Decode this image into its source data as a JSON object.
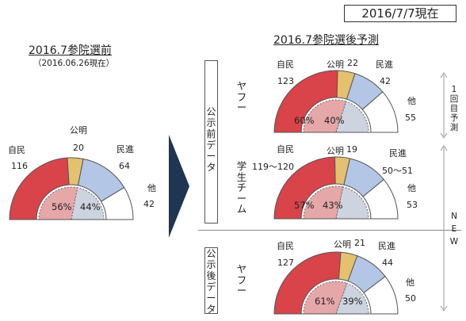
{
  "date_box": "2016/7/7現在",
  "left": {
    "title": "2016.7参院選前",
    "subtitle": "（2016.06.26現在）",
    "seats": {
      "jimin": "116",
      "komei": "20",
      "minshin": "64",
      "other": "42"
    },
    "labels": {
      "jimin": "自民",
      "komei": "公明",
      "minshin": "民進",
      "other": "他"
    },
    "inner": {
      "left_pct": "56%",
      "right_pct": "44%"
    }
  },
  "right_title": "2016.7参院選後予測",
  "group_pre_label": [
    "公",
    "示",
    "前",
    "デ",
    "ー",
    "タ"
  ],
  "group_post_label": [
    "公",
    "示",
    "後",
    "デ",
    "ー",
    "タ"
  ],
  "rows": [
    {
      "source": [
        "ヤ",
        "フ",
        "ー"
      ],
      "labels": {
        "jimin": "自民",
        "komei": "公明",
        "minshin": "民進",
        "other": "他"
      },
      "seats": {
        "jimin": "123",
        "komei": "22",
        "minshin": "42",
        "other": "55"
      },
      "inner": {
        "left_pct": "60%",
        "right_pct": "40%"
      }
    },
    {
      "source": [
        "学",
        "生",
        "チ",
        "ー",
        "ム"
      ],
      "labels": {
        "jimin": "自民",
        "komei": "公明",
        "minshin": "民進",
        "other": "他"
      },
      "seats": {
        "jimin": "119～120",
        "komei": "19",
        "minshin": "50～51",
        "other": "53"
      },
      "inner": {
        "left_pct": "57%",
        "right_pct": "43%"
      }
    },
    {
      "source": [
        "ヤ",
        "フ",
        "ー"
      ],
      "labels": {
        "jimin": "自民",
        "komei": "公明",
        "minshin": "民進",
        "other": "他"
      },
      "seats": {
        "jimin": "127",
        "komei": "21",
        "minshin": "44",
        "other": "50"
      },
      "inner": {
        "left_pct": "61%",
        "right_pct": "39%"
      }
    }
  ],
  "side_first": [
    "1",
    "回",
    "目",
    "予",
    "測"
  ],
  "side_new": [
    "N",
    "E",
    "W"
  ],
  "chart_data": [
    {
      "type": "pie",
      "title": "2016.7参院選前",
      "categories": [
        "自民",
        "公明",
        "民進",
        "他"
      ],
      "values": [
        116,
        20,
        64,
        42
      ],
      "inner_split": [
        56,
        44
      ]
    },
    {
      "type": "pie",
      "title": "ヤフー（公示前）",
      "categories": [
        "自民",
        "公明",
        "民進",
        "他"
      ],
      "values": [
        123,
        22,
        42,
        55
      ],
      "inner_split": [
        60,
        40
      ]
    },
    {
      "type": "pie",
      "title": "学生チーム",
      "categories": [
        "自民",
        "公明",
        "民進",
        "他"
      ],
      "values": [
        119.5,
        19,
        50.5,
        53
      ],
      "inner_split": [
        57,
        43
      ]
    },
    {
      "type": "pie",
      "title": "ヤフー（公示後）",
      "categories": [
        "自民",
        "公明",
        "民進",
        "他"
      ],
      "values": [
        127,
        21,
        44,
        50
      ],
      "inner_split": [
        61,
        39
      ]
    }
  ],
  "colors": {
    "jimin": "#d9434a",
    "komei": "#e3c16f",
    "minshin": "#b3c6e5",
    "other": "#ffffff",
    "inner_left": "#e6a7a9",
    "inner_right": "#cdd3df",
    "arrow": "#1f3552"
  }
}
